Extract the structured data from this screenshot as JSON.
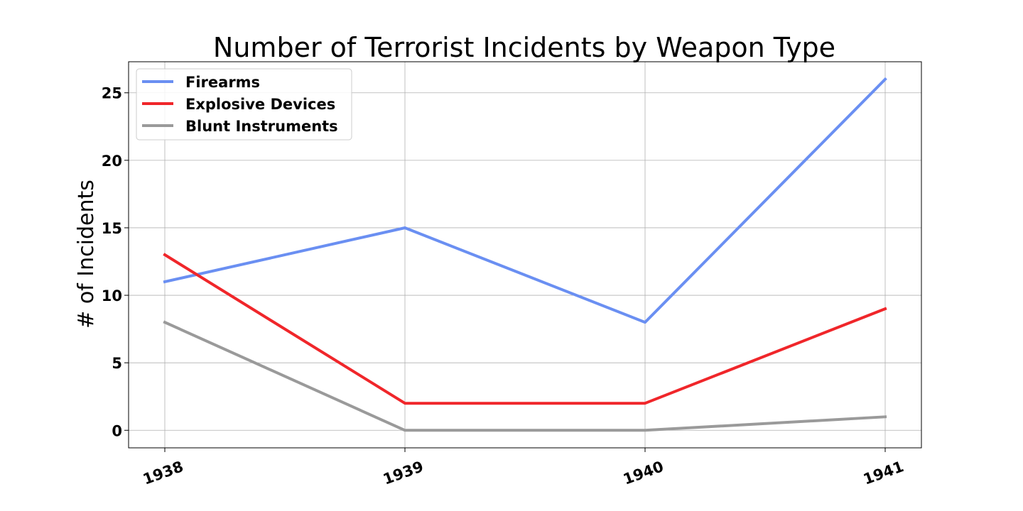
{
  "chart_data": {
    "type": "line",
    "title": "Number of Terrorist Incidents by Weapon Type",
    "xlabel": "",
    "ylabel": "# of Incidents",
    "categories": [
      "1938",
      "1939",
      "1940",
      "1941"
    ],
    "ylim": [
      -1.3,
      27.3
    ],
    "yticks": [
      0,
      5,
      10,
      15,
      20,
      25
    ],
    "grid": true,
    "legend_position": "top-left",
    "series": [
      {
        "name": "Firearms",
        "color": "#6a8ff2",
        "values": [
          11,
          15,
          8,
          26
        ]
      },
      {
        "name": "Explosive Devices",
        "color": "#f0262a",
        "values": [
          13,
          2,
          2,
          9
        ]
      },
      {
        "name": "Blunt Instruments",
        "color": "#9a9a9a",
        "values": [
          8,
          0,
          0,
          1
        ]
      }
    ]
  }
}
